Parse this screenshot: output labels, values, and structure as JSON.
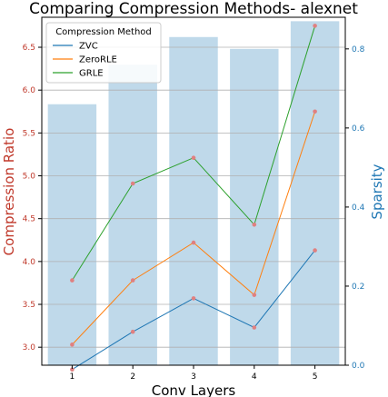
{
  "chart_data": {
    "type": "bar+line",
    "title": "Comparing Compression Methods- alexnet",
    "xlabel": "Conv Layers",
    "ylabel_left": "Compression Ratio",
    "ylabel_right": "Sparsity",
    "categories": [
      "1",
      "2",
      "3",
      "4",
      "5"
    ],
    "left_axis": {
      "ylim": [
        2.79,
        6.85
      ],
      "ticks": [
        3.0,
        3.5,
        4.0,
        4.5,
        5.0,
        5.5,
        6.0,
        6.5
      ],
      "tick_labels": [
        "3.0",
        "3.5",
        "4.0",
        "4.5",
        "5.0",
        "5.5",
        "6.0",
        "6.5"
      ],
      "color": "#c0392b"
    },
    "right_axis": {
      "ylim": [
        0.0,
        0.88
      ],
      "ticks": [
        0.0,
        0.2,
        0.4,
        0.6,
        0.8
      ],
      "tick_labels": [
        "0.0",
        "0.2",
        "0.4",
        "0.6",
        "0.8"
      ],
      "color": "#1f77b4"
    },
    "bars": {
      "axis": "right",
      "color": "#a9cce3",
      "values": [
        0.66,
        0.76,
        0.83,
        0.8,
        0.87
      ]
    },
    "series": [
      {
        "name": "ZVC",
        "axis": "left",
        "color": "#1f77b4",
        "values": [
          2.74,
          3.18,
          3.57,
          3.23,
          4.13
        ]
      },
      {
        "name": "ZeroRLE",
        "axis": "left",
        "color": "#ff7f0e",
        "values": [
          3.03,
          3.78,
          4.22,
          3.61,
          5.75
        ]
      },
      {
        "name": "GRLE",
        "axis": "left",
        "color": "#2ca02c",
        "values": [
          3.78,
          4.91,
          5.21,
          4.43,
          6.75
        ]
      }
    ],
    "marker_color": "#e08080",
    "legend": {
      "title": "Compression Method",
      "position": "top-left"
    },
    "grid": {
      "horizontal": true,
      "vertical": false
    }
  }
}
